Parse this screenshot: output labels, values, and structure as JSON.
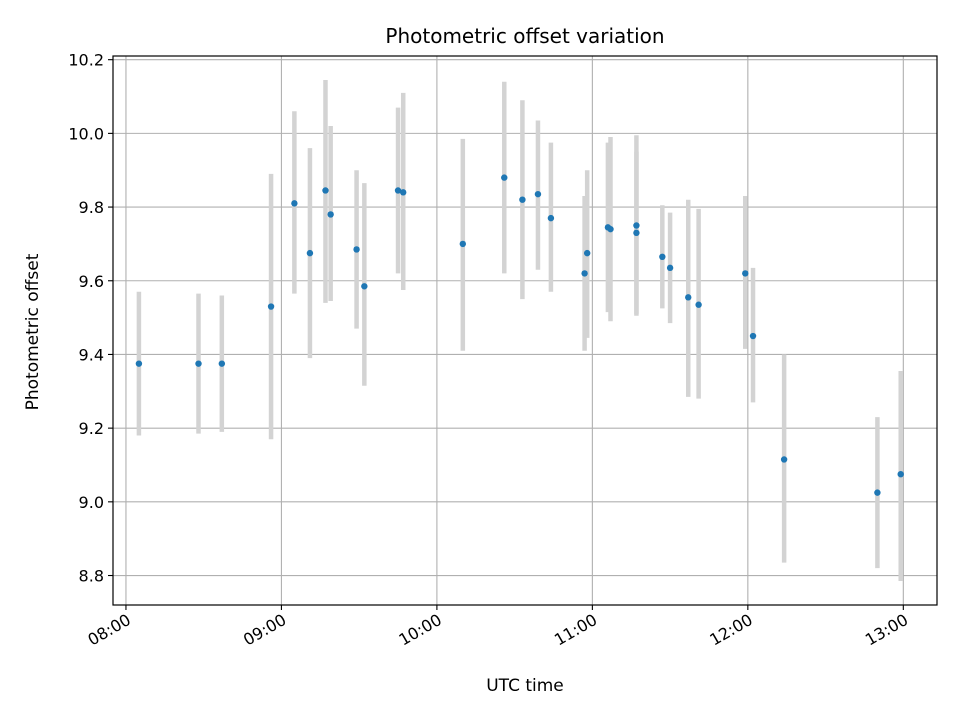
{
  "chart_data": {
    "type": "scatter",
    "title": "Photometric offset variation",
    "xlabel": "UTC time",
    "ylabel": "Photometric offset",
    "xlim": [
      "07:55",
      "13:13"
    ],
    "ylim": [
      8.72,
      10.21
    ],
    "x_ticks": [
      "08:00",
      "09:00",
      "10:00",
      "11:00",
      "12:00",
      "13:00"
    ],
    "y_ticks": [
      8.8,
      9.0,
      9.2,
      9.4,
      9.6,
      9.8,
      10.0,
      10.2
    ],
    "y_tick_labels": [
      "8.8",
      "9.0",
      "9.2",
      "9.4",
      "9.6",
      "9.8",
      "10.0",
      "10.2"
    ],
    "grid": true,
    "marker_color": "#1f77b4",
    "errorbar_color": "#d3d3d3",
    "points": [
      {
        "time": "08:05",
        "y": 9.375,
        "low": 9.18,
        "high": 9.57
      },
      {
        "time": "08:28",
        "y": 9.375,
        "low": 9.185,
        "high": 9.565
      },
      {
        "time": "08:37",
        "y": 9.375,
        "low": 9.19,
        "high": 9.56
      },
      {
        "time": "08:56",
        "y": 9.53,
        "low": 9.17,
        "high": 9.89
      },
      {
        "time": "09:05",
        "y": 9.81,
        "low": 9.565,
        "high": 10.06
      },
      {
        "time": "09:11",
        "y": 9.675,
        "low": 9.39,
        "high": 9.96
      },
      {
        "time": "09:17",
        "y": 9.845,
        "low": 9.54,
        "high": 10.145
      },
      {
        "time": "09:19",
        "y": 9.78,
        "low": 9.545,
        "high": 10.02
      },
      {
        "time": "09:29",
        "y": 9.685,
        "low": 9.47,
        "high": 9.9
      },
      {
        "time": "09:32",
        "y": 9.585,
        "low": 9.315,
        "high": 9.865
      },
      {
        "time": "09:45",
        "y": 9.845,
        "low": 9.62,
        "high": 10.07
      },
      {
        "time": "09:47",
        "y": 9.84,
        "low": 9.575,
        "high": 10.11
      },
      {
        "time": "10:10",
        "y": 9.7,
        "low": 9.41,
        "high": 9.985
      },
      {
        "time": "10:26",
        "y": 9.88,
        "low": 9.62,
        "high": 10.14
      },
      {
        "time": "10:33",
        "y": 9.82,
        "low": 9.55,
        "high": 10.09
      },
      {
        "time": "10:39",
        "y": 9.835,
        "low": 9.63,
        "high": 10.035
      },
      {
        "time": "10:44",
        "y": 9.77,
        "low": 9.57,
        "high": 9.975
      },
      {
        "time": "10:57",
        "y": 9.62,
        "low": 9.41,
        "high": 9.83
      },
      {
        "time": "10:58",
        "y": 9.675,
        "low": 9.445,
        "high": 9.9
      },
      {
        "time": "11:06",
        "y": 9.745,
        "low": 9.515,
        "high": 9.975
      },
      {
        "time": "11:07",
        "y": 9.74,
        "low": 9.49,
        "high": 9.99
      },
      {
        "time": "11:17",
        "y": 9.73,
        "low": 9.51,
        "high": 9.95
      },
      {
        "time": "11:17",
        "y": 9.75,
        "low": 9.505,
        "high": 9.995
      },
      {
        "time": "11:27",
        "y": 9.665,
        "low": 9.525,
        "high": 9.805
      },
      {
        "time": "11:30",
        "y": 9.635,
        "low": 9.485,
        "high": 9.785
      },
      {
        "time": "11:37",
        "y": 9.555,
        "low": 9.285,
        "high": 9.82
      },
      {
        "time": "11:41",
        "y": 9.535,
        "low": 9.28,
        "high": 9.795
      },
      {
        "time": "11:59",
        "y": 9.62,
        "low": 9.415,
        "high": 9.83
      },
      {
        "time": "12:02",
        "y": 9.45,
        "low": 9.27,
        "high": 9.635
      },
      {
        "time": "12:14",
        "y": 9.115,
        "low": 8.835,
        "high": 9.4
      },
      {
        "time": "12:50",
        "y": 9.025,
        "low": 8.82,
        "high": 9.23
      },
      {
        "time": "12:59",
        "y": 9.075,
        "low": 8.785,
        "high": 9.355
      }
    ]
  }
}
